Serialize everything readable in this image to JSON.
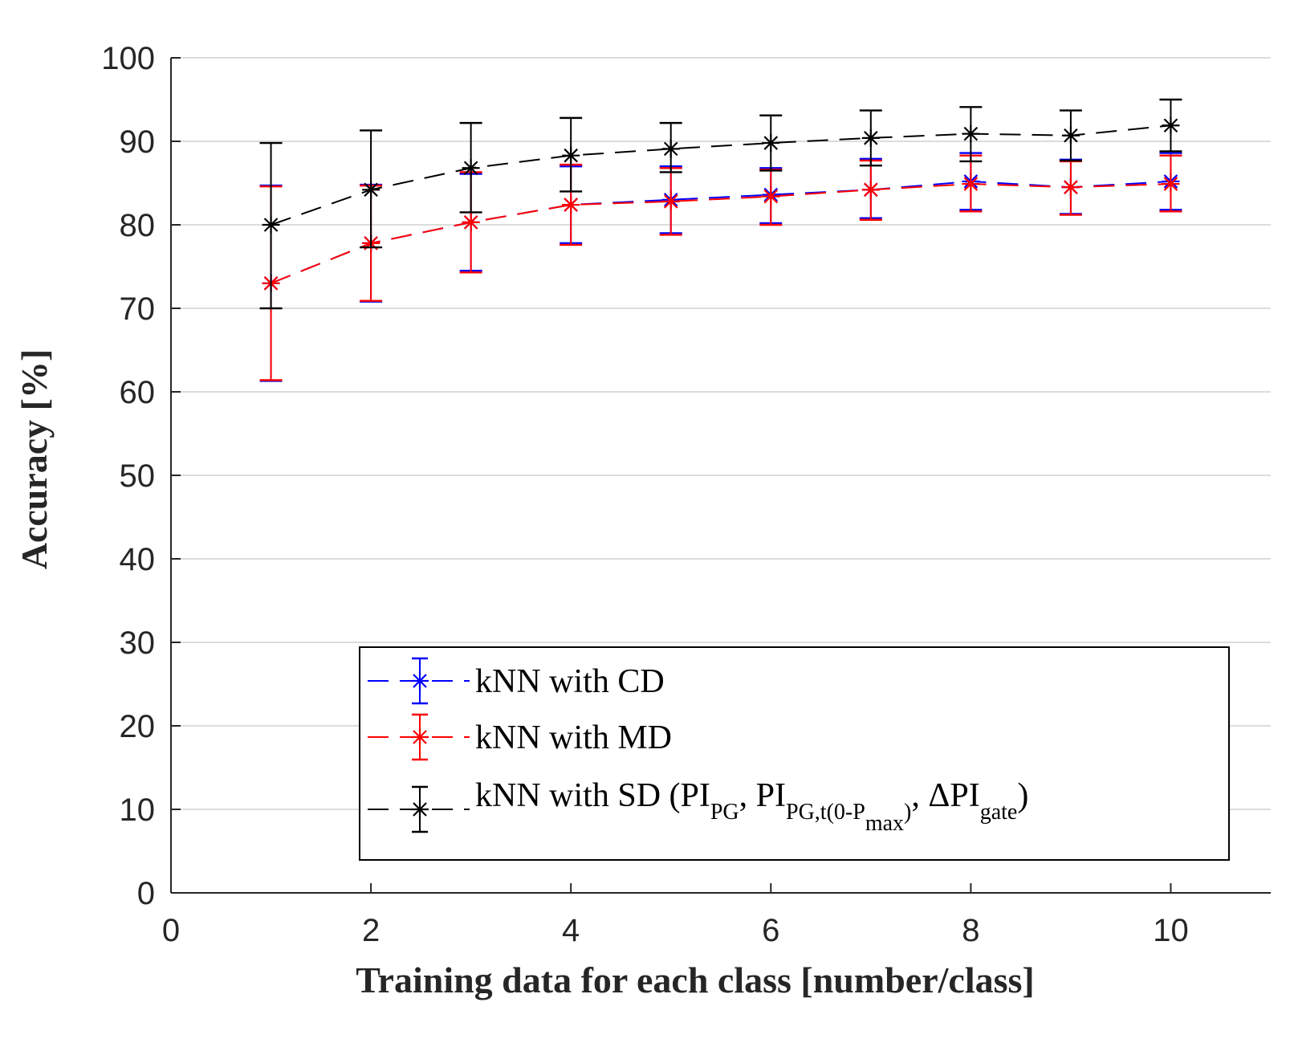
{
  "chart_data": {
    "type": "line",
    "title": "",
    "xlabel": "Training data for each class [number/class]",
    "ylabel": "Accuracy [%]",
    "xlim": [
      0,
      11
    ],
    "ylim": [
      0,
      100
    ],
    "xticks": [
      0,
      2,
      4,
      6,
      8,
      10
    ],
    "yticks": [
      0,
      10,
      20,
      30,
      40,
      50,
      60,
      70,
      80,
      90,
      100
    ],
    "grid": "horizontal",
    "legend_position": "bottom-right",
    "x": [
      1,
      2,
      3,
      4,
      5,
      6,
      7,
      8,
      9,
      10
    ],
    "series": [
      {
        "name": "kNN with CD",
        "color": "#0000ff",
        "marker": "asterisk",
        "line_style": "dashed",
        "values": [
          73.0,
          77.8,
          80.3,
          82.4,
          83.0,
          83.6,
          84.2,
          85.2,
          84.5,
          85.2
        ],
        "lower": [
          61.3,
          70.8,
          74.5,
          77.8,
          79.0,
          80.2,
          80.8,
          81.8,
          81.3,
          81.8
        ],
        "upper": [
          84.7,
          84.8,
          86.1,
          87.0,
          87.0,
          86.8,
          87.9,
          88.6,
          87.8,
          88.6
        ]
      },
      {
        "name": "kNN with MD",
        "color": "#ff0000",
        "marker": "asterisk",
        "line_style": "dashed",
        "values": [
          73.0,
          77.8,
          80.3,
          82.4,
          82.8,
          83.4,
          84.2,
          84.9,
          84.5,
          84.9
        ],
        "lower": [
          61.4,
          70.9,
          74.3,
          77.6,
          78.8,
          80.0,
          80.6,
          81.6,
          81.2,
          81.6
        ],
        "upper": [
          84.6,
          84.7,
          86.3,
          87.2,
          86.8,
          86.6,
          87.7,
          88.3,
          87.6,
          88.3
        ]
      },
      {
        "name": "kNN with SD",
        "color": "#000000",
        "marker": "asterisk",
        "line_style": "dashed",
        "values": [
          80.0,
          84.2,
          86.8,
          88.3,
          89.1,
          89.8,
          90.4,
          90.9,
          90.7,
          91.9
        ],
        "lower": [
          70.0,
          77.3,
          81.5,
          84.0,
          86.3,
          86.5,
          87.1,
          87.6,
          87.7,
          88.8
        ],
        "upper": [
          89.8,
          91.3,
          92.2,
          92.8,
          92.2,
          93.1,
          93.7,
          94.1,
          93.7,
          95.0
        ]
      }
    ],
    "legend": {
      "cd": "kNN with CD",
      "md": "kNN with MD",
      "sd_main": "kNN with SD (PI",
      "sd_sub1": "PG",
      "sd_sep1": ", PI",
      "sd_sub2a": "PG,t(0-P",
      "sd_sub2b": "max",
      "sd_sub2c": ")",
      "sd_sep2": ", ΔPI",
      "sd_sub3": "gate",
      "sd_close": ")"
    }
  }
}
